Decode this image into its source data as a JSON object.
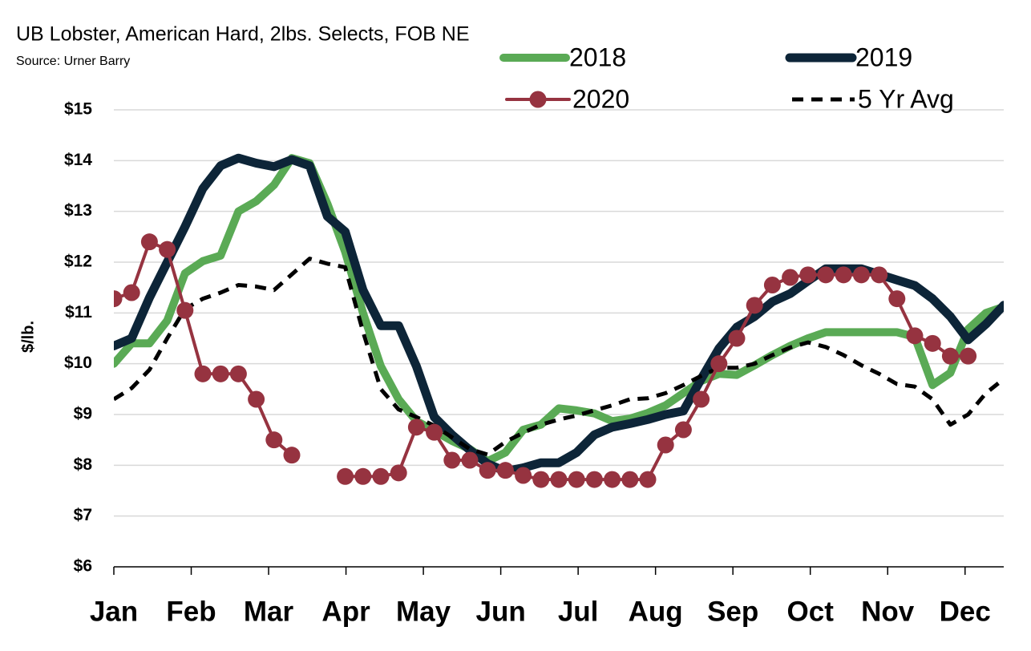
{
  "chart_data": {
    "type": "line",
    "title": "UB Lobster, American Hard, 2lbs. Selects, FOB NE",
    "subtitle": "Source: Urner Barry",
    "y_label": "$/lb.",
    "x": [
      0,
      0.23,
      0.46,
      0.69,
      0.92,
      1.15,
      1.38,
      1.61,
      1.84,
      2.07,
      2.3,
      2.53,
      2.76,
      2.99,
      3.22,
      3.45,
      3.68,
      3.91,
      4.14,
      4.37,
      4.6,
      4.83,
      5.06,
      5.29,
      5.52,
      5.75,
      5.98,
      6.21,
      6.44,
      6.67,
      6.9,
      7.13,
      7.36,
      7.59,
      7.82,
      8.05,
      8.28,
      8.51,
      8.74,
      8.97,
      9.2,
      9.43,
      9.66,
      9.89,
      10.12,
      10.35,
      10.58,
      10.81,
      11.04,
      11.27,
      11.5
    ],
    "xlim": [
      0,
      11.5
    ],
    "xticks": [
      {
        "value": 0,
        "label": "Jan"
      },
      {
        "value": 1,
        "label": "Feb"
      },
      {
        "value": 2,
        "label": "Mar"
      },
      {
        "value": 3,
        "label": "Apr"
      },
      {
        "value": 4,
        "label": "May"
      },
      {
        "value": 5,
        "label": "Jun"
      },
      {
        "value": 6,
        "label": "Jul"
      },
      {
        "value": 7,
        "label": "Aug"
      },
      {
        "value": 8,
        "label": "Sep"
      },
      {
        "value": 9,
        "label": "Oct"
      },
      {
        "value": 10,
        "label": "Nov"
      },
      {
        "value": 11,
        "label": "Dec"
      }
    ],
    "ylim": [
      6,
      15
    ],
    "yticks": [
      {
        "value": 6,
        "label": "$6"
      },
      {
        "value": 7,
        "label": "$7"
      },
      {
        "value": 8,
        "label": "$8"
      },
      {
        "value": 9,
        "label": "$9"
      },
      {
        "value": 10,
        "label": "$10"
      },
      {
        "value": 11,
        "label": "$11"
      },
      {
        "value": 12,
        "label": "$12"
      },
      {
        "value": 13,
        "label": "$13"
      },
      {
        "value": 14,
        "label": "$14"
      },
      {
        "value": 15,
        "label": "$15"
      }
    ],
    "grid": true,
    "series": [
      {
        "name": "2018",
        "color": "#5aaa55",
        "style": "solid",
        "values": [
          10.0,
          10.4,
          10.4,
          10.85,
          11.78,
          12.02,
          12.13,
          13.0,
          13.2,
          13.52,
          14.05,
          13.95,
          13.15,
          12.2,
          11.0,
          9.95,
          9.3,
          8.87,
          8.68,
          8.48,
          8.32,
          8.08,
          8.25,
          8.7,
          8.8,
          9.12,
          9.08,
          9.02,
          8.87,
          8.92,
          9.03,
          9.18,
          9.42,
          9.66,
          9.8,
          9.78,
          9.97,
          10.17,
          10.35,
          10.5,
          10.62,
          10.62,
          10.62,
          10.62,
          10.62,
          10.53,
          9.58,
          9.82,
          10.68,
          11.0,
          11.12
        ]
      },
      {
        "name": "2019",
        "color": "#0d2538",
        "style": "solid",
        "values": [
          10.35,
          10.5,
          11.3,
          12.0,
          12.7,
          13.45,
          13.9,
          14.05,
          13.95,
          13.88,
          14.02,
          13.9,
          12.9,
          12.6,
          11.45,
          10.75,
          10.75,
          9.95,
          8.95,
          8.6,
          8.3,
          8.03,
          7.88,
          7.95,
          8.05,
          8.05,
          8.25,
          8.6,
          8.75,
          8.82,
          8.9,
          9.0,
          9.07,
          9.7,
          10.3,
          10.72,
          10.93,
          11.22,
          11.38,
          11.63,
          11.87,
          11.87,
          11.87,
          11.76,
          11.65,
          11.54,
          11.28,
          10.93,
          10.47,
          10.78,
          11.15
        ]
      },
      {
        "name": "2020",
        "color": "#963340",
        "style": "markers",
        "values": [
          11.28,
          11.4,
          12.4,
          12.25,
          11.05,
          9.8,
          9.8,
          9.8,
          9.3,
          8.5,
          8.2,
          null,
          null,
          7.78,
          7.78,
          7.78,
          7.85,
          8.75,
          8.65,
          8.1,
          8.1,
          7.9,
          7.9,
          7.8,
          7.72,
          7.72,
          7.72,
          7.72,
          7.72,
          7.72,
          7.72,
          8.4,
          8.7,
          9.3,
          10.0,
          10.5,
          11.15,
          11.55,
          11.7,
          11.75,
          11.75,
          11.75,
          11.75,
          11.75,
          11.28,
          10.55,
          10.4,
          10.15,
          10.15,
          null,
          null
        ]
      },
      {
        "name": "5 Yr Avg",
        "color": "#000000",
        "style": "dashed",
        "values": [
          9.3,
          9.52,
          9.88,
          10.5,
          11.08,
          11.28,
          11.4,
          11.55,
          11.52,
          11.45,
          11.76,
          12.07,
          11.97,
          11.9,
          10.63,
          9.5,
          9.1,
          8.95,
          8.78,
          8.55,
          8.32,
          8.21,
          8.46,
          8.64,
          8.8,
          8.9,
          8.98,
          9.08,
          9.18,
          9.3,
          9.32,
          9.42,
          9.58,
          9.76,
          9.92,
          9.92,
          10.0,
          10.17,
          10.32,
          10.42,
          10.33,
          10.17,
          9.97,
          9.8,
          9.6,
          9.55,
          9.3,
          8.8,
          9.0,
          9.42,
          9.7
        ]
      }
    ]
  }
}
